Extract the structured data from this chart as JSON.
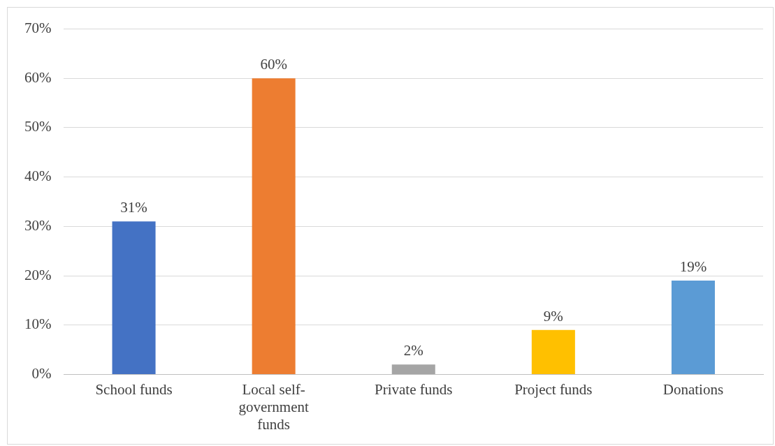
{
  "chart_data": {
    "type": "bar",
    "categories": [
      "School funds",
      "Local self-government funds",
      "Private funds",
      "Project funds",
      "Donations"
    ],
    "values": [
      31,
      60,
      2,
      9,
      19
    ],
    "colors": [
      "#4472c4",
      "#ed7d31",
      "#a5a5a5",
      "#ffc000",
      "#5b9bd5"
    ],
    "value_labels": [
      "31%",
      "60%",
      "2%",
      "9%",
      "19%"
    ],
    "ylim": [
      0,
      70
    ],
    "yticks": [
      {
        "value": 0,
        "label": "0%"
      },
      {
        "value": 10,
        "label": "10%"
      },
      {
        "value": 20,
        "label": "20%"
      },
      {
        "value": 30,
        "label": "30%"
      },
      {
        "value": 40,
        "label": "40%"
      },
      {
        "value": 50,
        "label": "50%"
      },
      {
        "value": 60,
        "label": "60%"
      },
      {
        "value": 70,
        "label": "70%"
      }
    ],
    "grid": "y",
    "legend": false
  }
}
